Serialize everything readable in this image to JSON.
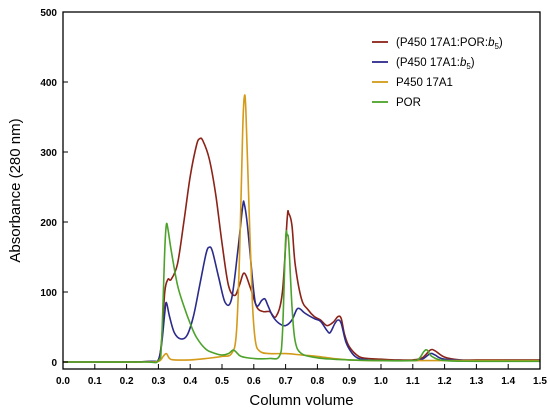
{
  "chart_data": {
    "type": "line",
    "title": "",
    "xlabel": "Column volume",
    "ylabel": "Absorbance (280 nm)",
    "xlim": [
      0.0,
      1.5
    ],
    "ylim": [
      -10,
      500
    ],
    "x_ticks": [
      0.0,
      0.1,
      0.2,
      0.3,
      0.4,
      0.5,
      0.6,
      0.7,
      0.8,
      0.9,
      1.0,
      1.1,
      1.2,
      1.3,
      1.4,
      1.5
    ],
    "x_tick_labels": [
      "0.0",
      "0.1",
      "0.2",
      "0.3",
      "0.4",
      "0.5",
      "0.6",
      "0.7",
      "0.8",
      "0.9",
      "1.0",
      "1.1",
      "1.2",
      "1.3",
      "1.4",
      "1.5"
    ],
    "y_ticks": [
      0,
      100,
      200,
      300,
      400,
      500
    ],
    "y_tick_labels": [
      "0",
      "100",
      "200",
      "300",
      "400",
      "500"
    ],
    "grid": false,
    "legend_position": "top-right",
    "series": [
      {
        "name": "(P450 17A1:POR:b5)",
        "legend": {
          "pre": "(P450 17A1:POR:",
          "italic": "b",
          "sub": "5",
          "post": ")"
        },
        "color": "#8B2318",
        "points": [
          [
            0.0,
            0
          ],
          [
            0.2,
            0
          ],
          [
            0.28,
            1
          ],
          [
            0.3,
            3
          ],
          [
            0.31,
            30
          ],
          [
            0.32,
            100
          ],
          [
            0.33,
            118
          ],
          [
            0.34,
            118
          ],
          [
            0.36,
            140
          ],
          [
            0.38,
            200
          ],
          [
            0.4,
            265
          ],
          [
            0.42,
            310
          ],
          [
            0.43,
            319
          ],
          [
            0.44,
            316
          ],
          [
            0.46,
            290
          ],
          [
            0.48,
            240
          ],
          [
            0.5,
            170
          ],
          [
            0.52,
            110
          ],
          [
            0.54,
            95
          ],
          [
            0.555,
            110
          ],
          [
            0.57,
            127
          ],
          [
            0.59,
            105
          ],
          [
            0.61,
            78
          ],
          [
            0.63,
            72
          ],
          [
            0.65,
            72
          ],
          [
            0.67,
            65
          ],
          [
            0.69,
            100
          ],
          [
            0.705,
            205
          ],
          [
            0.71,
            212
          ],
          [
            0.72,
            195
          ],
          [
            0.73,
            140
          ],
          [
            0.75,
            90
          ],
          [
            0.77,
            75
          ],
          [
            0.79,
            65
          ],
          [
            0.81,
            60
          ],
          [
            0.83,
            52
          ],
          [
            0.85,
            57
          ],
          [
            0.865,
            65
          ],
          [
            0.875,
            62
          ],
          [
            0.885,
            40
          ],
          [
            0.9,
            22
          ],
          [
            0.93,
            8
          ],
          [
            0.96,
            5
          ],
          [
            1.0,
            4
          ],
          [
            1.05,
            3
          ],
          [
            1.1,
            3
          ],
          [
            1.13,
            6
          ],
          [
            1.155,
            17
          ],
          [
            1.17,
            16
          ],
          [
            1.2,
            7
          ],
          [
            1.25,
            3
          ],
          [
            1.3,
            3
          ],
          [
            1.4,
            3
          ],
          [
            1.5,
            3
          ]
        ]
      },
      {
        "name": "(P450 17A1:b5)",
        "legend": {
          "pre": "(P450 17A1:",
          "italic": "b",
          "sub": "5",
          "post": ")"
        },
        "color": "#2B2B8C",
        "points": [
          [
            0.0,
            0
          ],
          [
            0.2,
            0
          ],
          [
            0.28,
            1
          ],
          [
            0.3,
            3
          ],
          [
            0.31,
            25
          ],
          [
            0.32,
            70
          ],
          [
            0.325,
            85
          ],
          [
            0.335,
            65
          ],
          [
            0.35,
            42
          ],
          [
            0.37,
            33
          ],
          [
            0.39,
            38
          ],
          [
            0.41,
            65
          ],
          [
            0.43,
            110
          ],
          [
            0.45,
            155
          ],
          [
            0.46,
            164
          ],
          [
            0.47,
            158
          ],
          [
            0.49,
            120
          ],
          [
            0.51,
            85
          ],
          [
            0.53,
            90
          ],
          [
            0.55,
            160
          ],
          [
            0.565,
            222
          ],
          [
            0.57,
            226
          ],
          [
            0.58,
            195
          ],
          [
            0.6,
            100
          ],
          [
            0.61,
            80
          ],
          [
            0.625,
            88
          ],
          [
            0.635,
            90
          ],
          [
            0.645,
            80
          ],
          [
            0.66,
            65
          ],
          [
            0.68,
            55
          ],
          [
            0.7,
            52
          ],
          [
            0.72,
            60
          ],
          [
            0.735,
            75
          ],
          [
            0.745,
            76
          ],
          [
            0.76,
            70
          ],
          [
            0.79,
            62
          ],
          [
            0.81,
            58
          ],
          [
            0.83,
            45
          ],
          [
            0.84,
            42
          ],
          [
            0.855,
            55
          ],
          [
            0.865,
            60
          ],
          [
            0.875,
            55
          ],
          [
            0.89,
            28
          ],
          [
            0.91,
            12
          ],
          [
            0.93,
            5
          ],
          [
            0.96,
            3
          ],
          [
            1.0,
            2
          ],
          [
            1.05,
            2
          ],
          [
            1.1,
            2
          ],
          [
            1.13,
            4
          ],
          [
            1.155,
            12
          ],
          [
            1.17,
            10
          ],
          [
            1.2,
            4
          ],
          [
            1.3,
            2
          ],
          [
            1.4,
            2
          ],
          [
            1.5,
            2
          ]
        ]
      },
      {
        "name": "P450 17A1",
        "legend": {
          "pre": "P450 17A1",
          "italic": "",
          "sub": "",
          "post": ""
        },
        "color": "#D49A1A",
        "points": [
          [
            0.0,
            0
          ],
          [
            0.25,
            0
          ],
          [
            0.3,
            1
          ],
          [
            0.315,
            8
          ],
          [
            0.325,
            12
          ],
          [
            0.335,
            5
          ],
          [
            0.35,
            3
          ],
          [
            0.4,
            3
          ],
          [
            0.45,
            5
          ],
          [
            0.5,
            8
          ],
          [
            0.53,
            12
          ],
          [
            0.545,
            40
          ],
          [
            0.555,
            150
          ],
          [
            0.565,
            330
          ],
          [
            0.57,
            378
          ],
          [
            0.575,
            360
          ],
          [
            0.585,
            220
          ],
          [
            0.595,
            90
          ],
          [
            0.605,
            30
          ],
          [
            0.62,
            15
          ],
          [
            0.65,
            12
          ],
          [
            0.7,
            12
          ],
          [
            0.75,
            10
          ],
          [
            0.8,
            8
          ],
          [
            0.85,
            5
          ],
          [
            0.9,
            3
          ],
          [
            1.0,
            2
          ],
          [
            1.1,
            2
          ],
          [
            1.2,
            2
          ],
          [
            1.3,
            2
          ],
          [
            1.4,
            2
          ],
          [
            1.5,
            2
          ]
        ]
      },
      {
        "name": "POR",
        "legend": {
          "pre": "POR",
          "italic": "",
          "sub": "",
          "post": ""
        },
        "color": "#4CA22A",
        "points": [
          [
            0.0,
            0
          ],
          [
            0.25,
            0
          ],
          [
            0.3,
            2
          ],
          [
            0.31,
            30
          ],
          [
            0.32,
            160
          ],
          [
            0.325,
            196
          ],
          [
            0.33,
            190
          ],
          [
            0.34,
            160
          ],
          [
            0.36,
            110
          ],
          [
            0.38,
            80
          ],
          [
            0.4,
            55
          ],
          [
            0.42,
            35
          ],
          [
            0.45,
            18
          ],
          [
            0.48,
            12
          ],
          [
            0.5,
            10
          ],
          [
            0.52,
            12
          ],
          [
            0.535,
            17
          ],
          [
            0.545,
            14
          ],
          [
            0.56,
            8
          ],
          [
            0.6,
            5
          ],
          [
            0.65,
            5
          ],
          [
            0.68,
            8
          ],
          [
            0.69,
            40
          ],
          [
            0.7,
            175
          ],
          [
            0.705,
            181
          ],
          [
            0.71,
            170
          ],
          [
            0.72,
            80
          ],
          [
            0.73,
            30
          ],
          [
            0.75,
            12
          ],
          [
            0.8,
            6
          ],
          [
            0.85,
            4
          ],
          [
            0.9,
            3
          ],
          [
            1.0,
            2
          ],
          [
            1.1,
            2
          ],
          [
            1.12,
            5
          ],
          [
            1.135,
            15
          ],
          [
            1.145,
            17
          ],
          [
            1.16,
            8
          ],
          [
            1.2,
            2
          ],
          [
            1.3,
            1
          ],
          [
            1.5,
            1
          ]
        ]
      }
    ]
  }
}
